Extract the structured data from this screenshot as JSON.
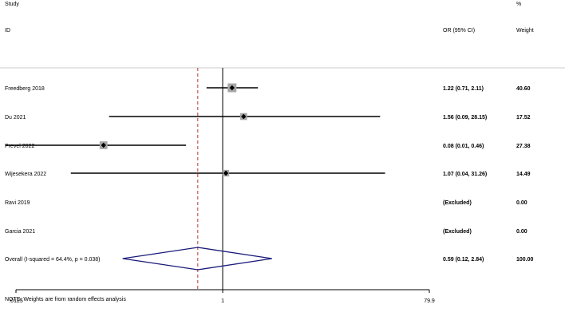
{
  "header": {
    "study": "Study",
    "id": "ID",
    "pct": "%",
    "or_label": "OR (95% CI)",
    "weight_label": "Weight"
  },
  "note": "NOTE: Weights are from random effects analysis",
  "chart_data": {
    "type": "forest",
    "x_scale": "log",
    "xlim": [
      0.0125,
      79.9
    ],
    "x_ticks": [
      ".0125",
      "1",
      "79.9"
    ],
    "null_line": 1,
    "overall_line": 0.59,
    "studies": [
      {
        "name": "Freedberg 2018",
        "or": 1.22,
        "lo": 0.71,
        "hi": 2.11,
        "ci_text": "1.22 (0.71, 2.11)",
        "weight": 40.6,
        "weight_text": "40.60",
        "excluded": false
      },
      {
        "name": "Du 2021",
        "or": 1.56,
        "lo": 0.09,
        "hi": 28.15,
        "ci_text": "1.56 (0.09, 28.15)",
        "weight": 17.52,
        "weight_text": "17.52",
        "excluded": false
      },
      {
        "name": "Prevel 2022",
        "or": 0.08,
        "lo": 0.01,
        "hi": 0.46,
        "ci_text": "0.08 (0.01, 0.46)",
        "weight": 27.38,
        "weight_text": "27.38",
        "excluded": false
      },
      {
        "name": "Wijesekera 2022",
        "or": 1.07,
        "lo": 0.04,
        "hi": 31.26,
        "ci_text": "1.07 (0.04, 31.26)",
        "weight": 14.49,
        "weight_text": "14.49",
        "excluded": false
      },
      {
        "name": "Ravi 2019",
        "ci_text": "(Excluded)",
        "weight": 0,
        "weight_text": "0.00",
        "excluded": true
      },
      {
        "name": "Garcia 2021",
        "ci_text": "(Excluded)",
        "weight": 0,
        "weight_text": "0.00",
        "excluded": true
      }
    ],
    "overall": {
      "label": "Overall  (I-squared = 64.4%, p = 0.038)",
      "or": 0.59,
      "lo": 0.12,
      "hi": 2.84,
      "ci_text": "0.59 (0.12, 2.84)",
      "weight_text": "100.00"
    },
    "colors": {
      "diamond": "#1a1a7a",
      "box": "#a6a6a6",
      "overall_line": "#b02020",
      "line": "#000000"
    }
  }
}
